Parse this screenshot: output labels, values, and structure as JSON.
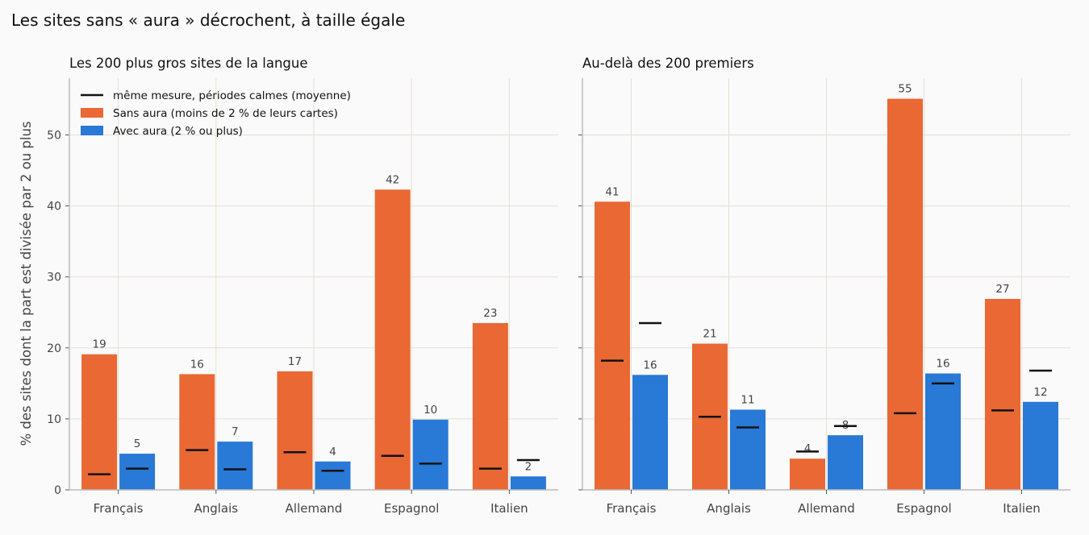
{
  "title": "Les sites sans « aura » décrochent, à taille égale",
  "ylabel": "% des sites dont la part est divisée par 2 ou plus",
  "legend": {
    "baseline_label": "même mesure, périodes calmes (moyenne)",
    "placement": "top-left"
  },
  "colors": {
    "sans_aura": "#e96834",
    "avec_aura": "#2979d6",
    "baseline": "#111111",
    "grid": "#e3e0d3",
    "axis": "#bbbbbb",
    "text": "#444444"
  },
  "chart_data": [
    {
      "type": "bar",
      "title": "Les 200 plus gros sites de la langue",
      "categories": [
        "Français",
        "Anglais",
        "Allemand",
        "Espagnol",
        "Italien"
      ],
      "ylim": [
        0,
        58
      ],
      "yticks": [
        0,
        10,
        20,
        30,
        40,
        50
      ],
      "grid": true,
      "series": [
        {
          "name": "Sans aura (moins de 2 % de leurs cartes)",
          "values": [
            19.1,
            16.3,
            16.7,
            42.3,
            23.5
          ],
          "labels": [
            "19",
            "16",
            "17",
            "42",
            "23"
          ],
          "baseline": [
            2.2,
            5.6,
            5.3,
            4.8,
            3.0
          ]
        },
        {
          "name": "Avec aura (2 % ou plus)",
          "values": [
            5.1,
            6.8,
            4.0,
            9.9,
            1.9
          ],
          "labels": [
            "5",
            "7",
            "4",
            "10",
            "2"
          ],
          "baseline": [
            3.0,
            2.9,
            2.7,
            3.7,
            4.2
          ]
        }
      ]
    },
    {
      "type": "bar",
      "title": "Au-delà des 200 premiers",
      "categories": [
        "Français",
        "Anglais",
        "Allemand",
        "Espagnol",
        "Italien"
      ],
      "ylim": [
        0,
        58
      ],
      "yticks": [
        0,
        10,
        20,
        30,
        40,
        50
      ],
      "grid": true,
      "series": [
        {
          "name": "Sans aura (moins de 2 % de leurs cartes)",
          "values": [
            40.6,
            20.6,
            4.4,
            55.1,
            26.9
          ],
          "labels": [
            "41",
            "21",
            "4",
            "55",
            "27"
          ],
          "baseline": [
            18.2,
            10.3,
            5.4,
            10.8,
            11.2
          ]
        },
        {
          "name": "Avec aura (2 % ou plus)",
          "values": [
            16.2,
            11.3,
            7.7,
            16.4,
            12.4
          ],
          "labels": [
            "16",
            "11",
            "8",
            "16",
            "12"
          ],
          "baseline": [
            23.5,
            8.8,
            9.0,
            15.0,
            16.8
          ]
        }
      ]
    }
  ]
}
